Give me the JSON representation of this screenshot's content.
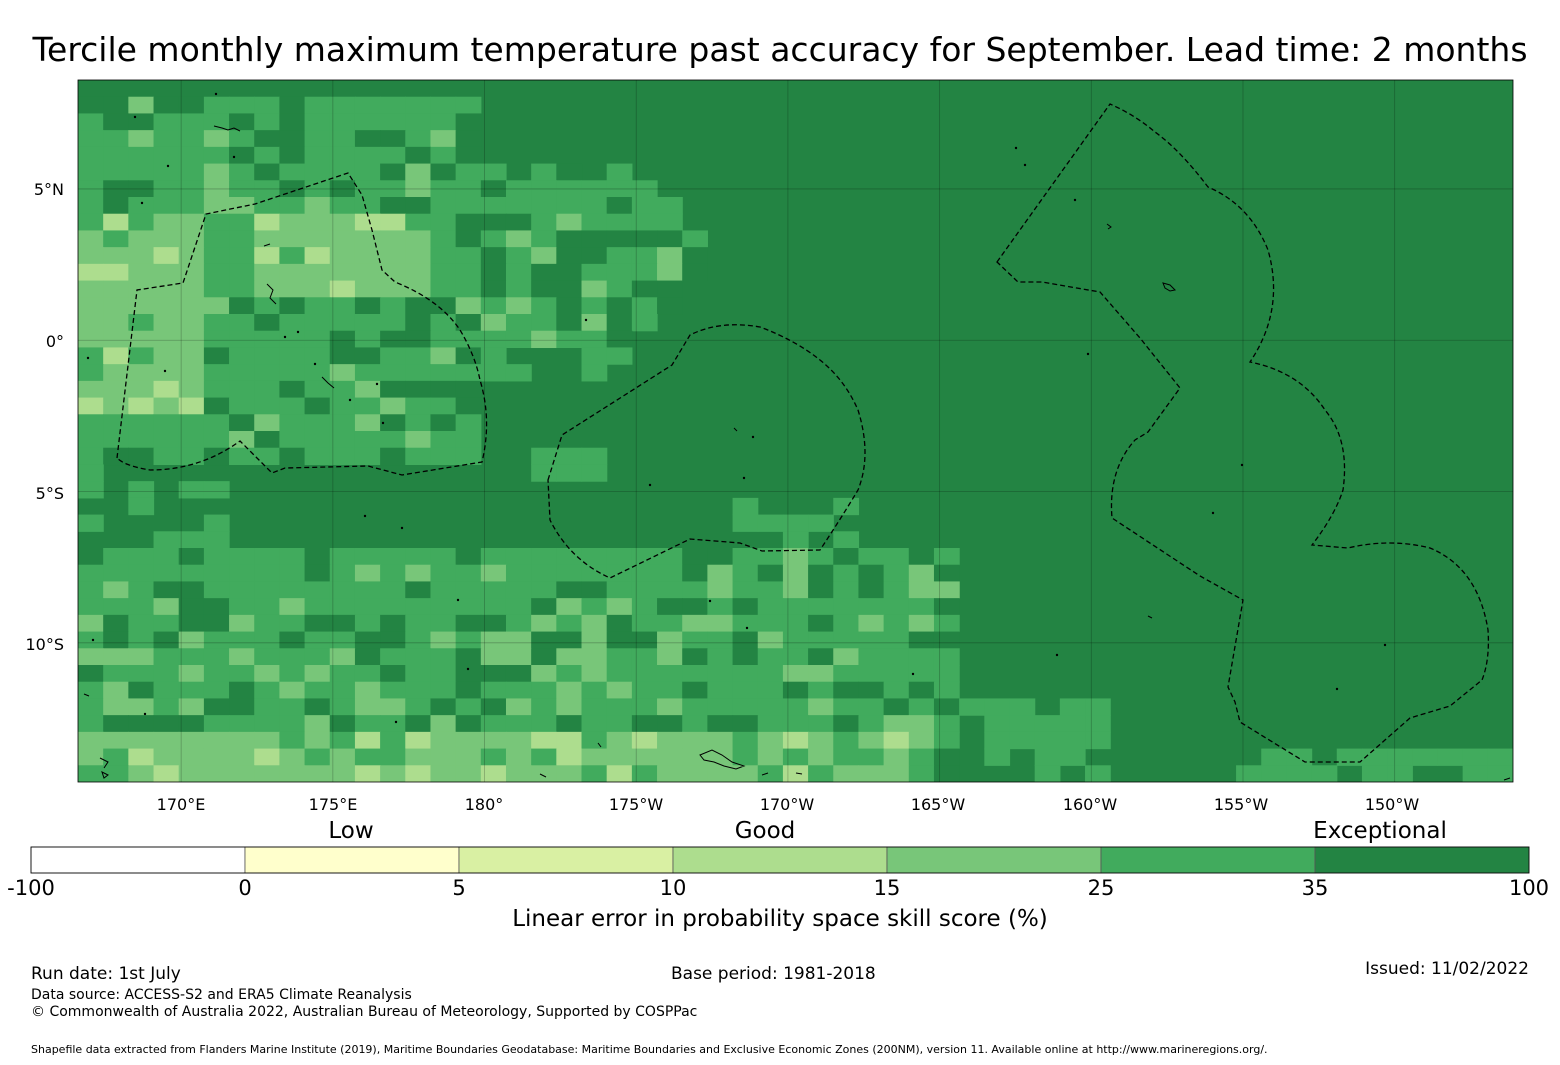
{
  "title": "Tercile monthly maximum temperature past accuracy for September. Lead time: 2 months",
  "map": {
    "lat_labels": [
      "5°N",
      "0°",
      "5°S",
      "10°S"
    ],
    "lon_labels": [
      "170°E",
      "175°E",
      "180°",
      "175°W",
      "170°W",
      "165°W",
      "160°W",
      "155°W",
      "150°W"
    ],
    "extent": {
      "lon_min": 166.6,
      "lon_max": 213.9,
      "lat_min": -14.6,
      "lat_max": 8.6
    },
    "grid_lons": [
      170,
      175,
      180,
      185,
      190,
      195,
      200,
      205,
      210
    ],
    "grid_lats": [
      5,
      0,
      -5,
      -10
    ]
  },
  "colorbar": {
    "category_labels": [
      "Low",
      "Good",
      "Exceptional"
    ],
    "ticks": [
      "-100",
      "0",
      "5",
      "10",
      "15",
      "25",
      "35",
      "100"
    ],
    "bins": [
      {
        "from": -100,
        "to": 0,
        "color": "#ffffff"
      },
      {
        "from": 0,
        "to": 5,
        "color": "#ffffcc"
      },
      {
        "from": 5,
        "to": 10,
        "color": "#d9f0a3"
      },
      {
        "from": 10,
        "to": 15,
        "color": "#addd8e"
      },
      {
        "from": 15,
        "to": 25,
        "color": "#78c679"
      },
      {
        "from": 25,
        "to": 35,
        "color": "#41ab5d"
      },
      {
        "from": 35,
        "to": 100,
        "color": "#238443"
      }
    ],
    "title": "Linear error in probability space skill score (%)"
  },
  "footer": {
    "run_date": "Run date: 1st July",
    "base_period": "Base period: 1981-2018",
    "issued": "Issued: 11/02/2022",
    "data_source": "Data source: ACCESS-S2 and ERA5 Climate Reanalysis",
    "copyright": "© Commonwealth of Australia 2022, Australian Bureau of Meteorology, Supported by COSPPac",
    "shapefile": "Shapefile data extracted from Flanders Marine Institute (2019), Maritime Boundaries Geodatabase: Maritime Boundaries and Exclusive Economic Zones (200NM), version 11. Available online at http://www.marineregions.org/."
  }
}
